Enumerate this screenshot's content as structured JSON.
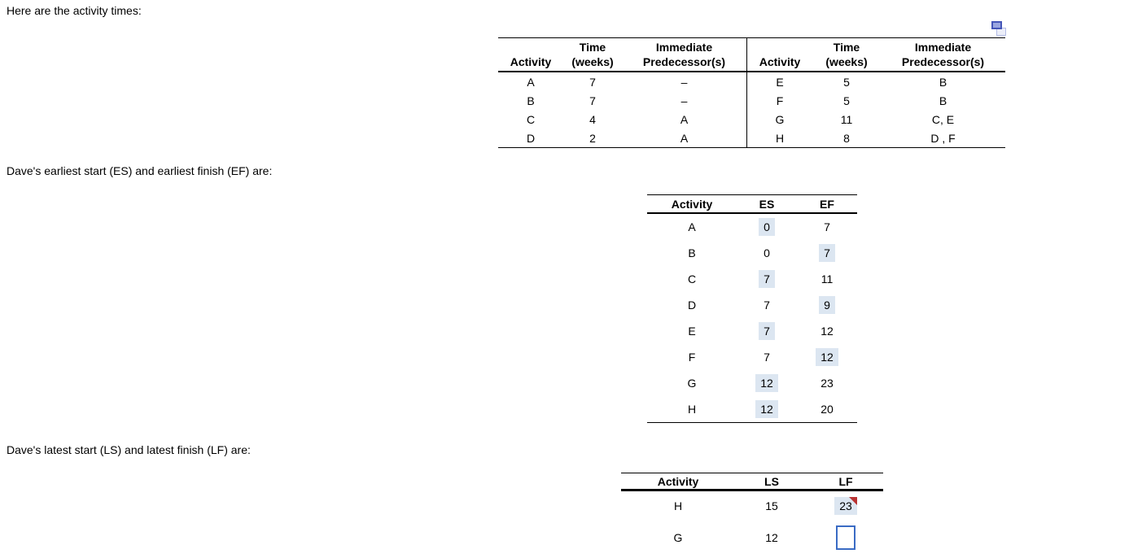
{
  "labels": {
    "intro": "Here are the activity times:",
    "es_ef": "Dave's earliest start (ES) and earliest finish (EF) are:",
    "ls_lf": "Dave's latest start (LS) and latest finish (LF) are:"
  },
  "icons": {
    "popout": "copy-popout-icon"
  },
  "colors": {
    "highlight_bg": "#dce6f1",
    "input_border": "#3a6bc4",
    "flag_red": "#b83232",
    "table_line": "#000000"
  },
  "activity_table": {
    "headers": {
      "activity": "Activity",
      "time_line1": "Time",
      "time_line2": "(weeks)",
      "pred_line1": "Immediate",
      "pred_line2": "Predecessor(s)"
    },
    "left_rows": [
      {
        "activity": "A",
        "time": "7",
        "pred": "–"
      },
      {
        "activity": "B",
        "time": "7",
        "pred": "–"
      },
      {
        "activity": "C",
        "time": "4",
        "pred": "A"
      },
      {
        "activity": "D",
        "time": "2",
        "pred": "A"
      }
    ],
    "right_rows": [
      {
        "activity": "E",
        "time": "5",
        "pred": "B"
      },
      {
        "activity": "F",
        "time": "5",
        "pred": "B"
      },
      {
        "activity": "G",
        "time": "11",
        "pred": "C, E"
      },
      {
        "activity": "H",
        "time": "8",
        "pred": "D , F"
      }
    ]
  },
  "es_ef_table": {
    "headers": {
      "activity": "Activity",
      "es": "ES",
      "ef": "EF"
    },
    "rows": [
      {
        "activity": "A",
        "es": "0",
        "ef": "7",
        "es_entered": true,
        "ef_entered": false
      },
      {
        "activity": "B",
        "es": "0",
        "ef": "7",
        "es_entered": false,
        "ef_entered": true
      },
      {
        "activity": "C",
        "es": "7",
        "ef": "11",
        "es_entered": true,
        "ef_entered": false
      },
      {
        "activity": "D",
        "es": "7",
        "ef": "9",
        "es_entered": false,
        "ef_entered": true
      },
      {
        "activity": "E",
        "es": "7",
        "ef": "12",
        "es_entered": true,
        "ef_entered": false
      },
      {
        "activity": "F",
        "es": "7",
        "ef": "12",
        "es_entered": false,
        "ef_entered": true
      },
      {
        "activity": "G",
        "es": "12",
        "ef": "23",
        "es_entered": true,
        "ef_entered": false
      },
      {
        "activity": "H",
        "es": "12",
        "ef": "20",
        "es_entered": true,
        "ef_entered": false
      }
    ]
  },
  "ls_lf_table": {
    "headers": {
      "activity": "Activity",
      "ls": "LS",
      "lf": "LF"
    },
    "rows": [
      {
        "activity": "H",
        "ls": "15",
        "lf": "23",
        "lf_entered": true,
        "lf_flagged": true
      },
      {
        "activity": "G",
        "ls": "12",
        "lf": "",
        "lf_is_input": true
      }
    ]
  }
}
